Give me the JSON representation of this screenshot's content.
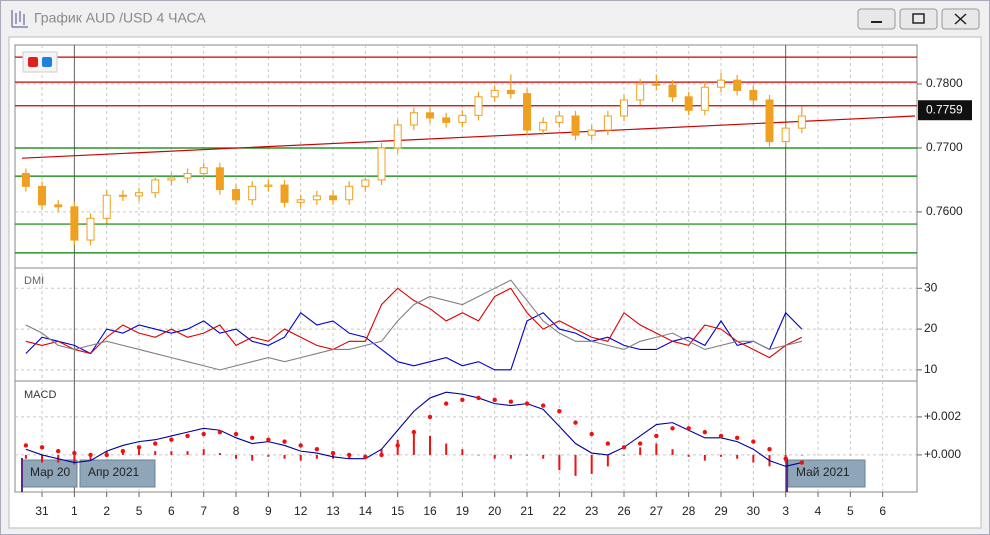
{
  "window": {
    "title": "График AUD /USD  4 ЧАСА"
  },
  "chart_data": [
    {
      "type": "candlestick",
      "color": "#f0a020",
      "x": [
        -0.5,
        0,
        0.5,
        1,
        1.5,
        2,
        2.5,
        3,
        3.5,
        4,
        4.5,
        5,
        5.5,
        6,
        6.5,
        7,
        7.5,
        8,
        8.5,
        9,
        9.5,
        10,
        10.5,
        11,
        11.5,
        12,
        12.5,
        13,
        13.5,
        14,
        14.5,
        15,
        15.5,
        16,
        16.5,
        17,
        17.5,
        18,
        18.5,
        19,
        19.5,
        20,
        20.5,
        21,
        21.5,
        22,
        22.5,
        23,
        23.5
      ],
      "open": [
        0.766,
        0.764,
        0.7611,
        0.7608,
        0.7556,
        0.759,
        0.7626,
        0.7625,
        0.763,
        0.765,
        0.7653,
        0.766,
        0.7669,
        0.7635,
        0.7619,
        0.764,
        0.7642,
        0.7615,
        0.7619,
        0.7625,
        0.7619,
        0.764,
        0.765,
        0.77,
        0.7736,
        0.7755,
        0.7747,
        0.774,
        0.7751,
        0.778,
        0.779,
        0.7785,
        0.7728,
        0.774,
        0.775,
        0.772,
        0.7728,
        0.775,
        0.7775,
        0.78,
        0.7798,
        0.778,
        0.7759,
        0.7795,
        0.7806,
        0.779,
        0.7775,
        0.771,
        0.7731
      ],
      "high": [
        0.7668,
        0.7648,
        0.7619,
        0.7616,
        0.7598,
        0.7634,
        0.7634,
        0.7638,
        0.7658,
        0.7661,
        0.7668,
        0.7677,
        0.7677,
        0.7643,
        0.7648,
        0.765,
        0.765,
        0.7627,
        0.7633,
        0.7633,
        0.7648,
        0.7658,
        0.7708,
        0.7744,
        0.7763,
        0.7763,
        0.7755,
        0.7759,
        0.7788,
        0.7798,
        0.7815,
        0.7793,
        0.7748,
        0.7758,
        0.7758,
        0.7736,
        0.7758,
        0.7783,
        0.7808,
        0.7815,
        0.7806,
        0.7788,
        0.7803,
        0.7818,
        0.7814,
        0.7798,
        0.7783,
        0.7739,
        0.7765
      ],
      "low": [
        0.7632,
        0.7603,
        0.76,
        0.7548,
        0.7548,
        0.7582,
        0.7617,
        0.7617,
        0.7622,
        0.7642,
        0.7645,
        0.7652,
        0.7627,
        0.7611,
        0.7611,
        0.7632,
        0.7607,
        0.7607,
        0.7611,
        0.7611,
        0.7611,
        0.7632,
        0.7642,
        0.7692,
        0.7728,
        0.7739,
        0.7732,
        0.7732,
        0.7743,
        0.7772,
        0.7777,
        0.772,
        0.772,
        0.7732,
        0.7712,
        0.7712,
        0.772,
        0.7742,
        0.7767,
        0.779,
        0.7772,
        0.7751,
        0.7751,
        0.7787,
        0.7782,
        0.7767,
        0.7702,
        0.7702,
        0.7723
      ],
      "close": [
        0.764,
        0.7611,
        0.7608,
        0.7556,
        0.759,
        0.7626,
        0.7625,
        0.763,
        0.765,
        0.7653,
        0.766,
        0.7669,
        0.7635,
        0.7619,
        0.764,
        0.7642,
        0.7615,
        0.7619,
        0.7625,
        0.7619,
        0.764,
        0.765,
        0.77,
        0.7736,
        0.7755,
        0.7747,
        0.774,
        0.7751,
        0.778,
        0.779,
        0.7785,
        0.7728,
        0.774,
        0.775,
        0.772,
        0.7728,
        0.775,
        0.7775,
        0.78,
        0.7798,
        0.778,
        0.7759,
        0.7795,
        0.7806,
        0.779,
        0.7775,
        0.771,
        0.7731,
        0.775
      ],
      "last_price": 0.7759,
      "levels": [
        {
          "value": 0.7842,
          "color": "#cc0000"
        },
        {
          "value": 0.7803,
          "color": "#cc0000"
        },
        {
          "value": 0.7766,
          "color": "#cc0000"
        },
        {
          "value": 0.77,
          "color": "#008000"
        },
        {
          "value": 0.7656,
          "color": "#008000"
        },
        {
          "value": 0.7581,
          "color": "#008000"
        },
        {
          "value": 0.7536,
          "color": "#008000"
        }
      ],
      "trendline": [
        0.7684,
        0.775
      ],
      "xlim": [
        -0.62,
        27.0
      ],
      "ylim": [
        0.7517,
        0.7861
      ],
      "yticks": [
        {
          "value": 0.76,
          "label": "0.7600"
        },
        {
          "value": 0.77,
          "label": "0.7700"
        },
        {
          "value": 0.78,
          "label": "0.7800"
        }
      ],
      "xticks": [
        {
          "value": 0,
          "label": "31"
        },
        {
          "value": 1,
          "label": "1"
        },
        {
          "value": 2,
          "label": "2"
        },
        {
          "value": 3,
          "label": "5"
        },
        {
          "value": 4,
          "label": "6"
        },
        {
          "value": 5,
          "label": "7"
        },
        {
          "value": 6,
          "label": "8"
        },
        {
          "value": 7,
          "label": "9"
        },
        {
          "value": 8,
          "label": "12"
        },
        {
          "value": 9,
          "label": "13"
        },
        {
          "value": 10,
          "label": "14"
        },
        {
          "value": 11,
          "label": "15"
        },
        {
          "value": 12,
          "label": "16"
        },
        {
          "value": 13,
          "label": "19"
        },
        {
          "value": 14,
          "label": "20"
        },
        {
          "value": 15,
          "label": "21"
        },
        {
          "value": 16,
          "label": "22"
        },
        {
          "value": 17,
          "label": "23"
        },
        {
          "value": 18,
          "label": "26"
        },
        {
          "value": 19,
          "label": "27"
        },
        {
          "value": 20,
          "label": "28"
        },
        {
          "value": 21,
          "label": "29"
        },
        {
          "value": 22,
          "label": "30"
        },
        {
          "value": 23,
          "label": "3"
        },
        {
          "value": 24,
          "label": "4"
        },
        {
          "value": 25,
          "label": "5"
        },
        {
          "value": 26,
          "label": "6"
        }
      ],
      "separators": [
        1,
        23
      ],
      "month_labels": [
        "Мар 20",
        "Апр 2021",
        "Май 2021"
      ],
      "grid": true
    },
    {
      "type": "line",
      "title": "DMI",
      "series": [
        {
          "color": "#0000cc",
          "values": [
            14,
            18,
            17,
            16,
            14,
            20,
            19,
            21,
            20,
            19,
            20,
            22,
            19,
            20,
            17,
            16,
            18,
            24,
            21,
            22,
            19,
            18,
            15,
            12,
            11,
            12,
            13,
            11,
            12,
            10,
            10,
            22,
            24,
            20,
            19,
            17,
            18,
            16,
            15,
            15,
            17,
            18,
            16,
            22,
            16,
            17,
            15,
            24,
            20
          ]
        },
        {
          "color": "#dd0000",
          "values": [
            17,
            16,
            17,
            15,
            14,
            18,
            21,
            19,
            18,
            20,
            18,
            19,
            21,
            16,
            18,
            17,
            20,
            18,
            16,
            15,
            17,
            17,
            26,
            30,
            27,
            25,
            22,
            24,
            22,
            28,
            30,
            24,
            20,
            22,
            20,
            18,
            17,
            24,
            21,
            19,
            17,
            16,
            21,
            20,
            17,
            15,
            13,
            16,
            18
          ]
        },
        {
          "color": "#808080",
          "values": [
            21,
            19,
            16,
            15,
            16,
            17,
            16,
            15,
            14,
            13,
            12,
            11,
            10,
            11,
            12,
            13,
            12,
            13,
            14,
            15,
            15,
            16,
            17,
            22,
            26,
            28,
            27,
            26,
            28,
            30,
            32,
            27,
            22,
            19,
            17,
            17,
            16,
            15,
            17,
            18,
            19,
            17,
            15,
            16,
            17,
            17,
            15,
            16,
            17
          ]
        }
      ],
      "ylim": [
        8,
        34
      ],
      "yticks": [
        10,
        20,
        30
      ]
    },
    {
      "type": "macd",
      "title": "MACD",
      "series": [
        {
          "color": "#000099",
          "style": "line",
          "values": [
            0.0003,
            0.0,
            -0.0002,
            -0.0004,
            -0.0003,
            0.0002,
            0.0005,
            0.0007,
            0.0008,
            0.001,
            0.0012,
            0.0014,
            0.0013,
            0.0009,
            0.0006,
            0.0007,
            0.0005,
            0.0002,
            0.0001,
            -0.0001,
            -0.0002,
            -0.0002,
            0.0003,
            0.0013,
            0.0023,
            0.003,
            0.0033,
            0.0032,
            0.003,
            0.0027,
            0.0026,
            0.0027,
            0.0024,
            0.0015,
            0.0006,
            0.0001,
            0.0,
            0.0004,
            0.001,
            0.0016,
            0.0017,
            0.0013,
            0.0009,
            0.0009,
            0.0007,
            0.0003,
            -0.0003,
            -0.0006,
            -0.0004
          ]
        },
        {
          "color": "#ee1111",
          "style": "dots",
          "values": [
            0.0005,
            0.0004,
            0.0002,
            0.0001,
            0.0,
            0.0,
            0.0002,
            0.0004,
            0.0006,
            0.0008,
            0.001,
            0.0011,
            0.0012,
            0.0011,
            0.0009,
            0.0008,
            0.0007,
            0.0005,
            0.0003,
            0.0001,
            0.0,
            -0.0001,
            0.0,
            0.0005,
            0.0012,
            0.002,
            0.0027,
            0.0029,
            0.003,
            0.0029,
            0.0028,
            0.0027,
            0.0026,
            0.0023,
            0.0017,
            0.0011,
            0.0006,
            0.0004,
            0.0006,
            0.001,
            0.0014,
            0.0014,
            0.0012,
            0.001,
            0.0009,
            0.0007,
            0.0003,
            -0.0002,
            -0.0004
          ]
        }
      ],
      "histogram": {
        "color": "#ee1111",
        "values": [
          -0.0002,
          -0.0004,
          -0.0004,
          -0.0005,
          -0.0003,
          0.0002,
          0.0003,
          0.0003,
          0.0002,
          0.0002,
          0.0002,
          0.0003,
          0.0001,
          -0.0002,
          -0.0003,
          -0.0001,
          -0.0002,
          -0.0003,
          -0.0002,
          -0.0002,
          -0.0002,
          -0.0001,
          0.0003,
          0.0008,
          0.0011,
          0.001,
          0.0006,
          0.0003,
          0.0,
          -0.0002,
          -0.0002,
          0.0,
          -0.0002,
          -0.0008,
          -0.0011,
          -0.001,
          -0.0006,
          0.0,
          0.0004,
          0.0006,
          0.0003,
          -0.0001,
          -0.0003,
          -0.0001,
          -0.0002,
          -0.0004,
          -0.0006,
          -0.0004,
          0.0
        ]
      },
      "ylim": [
        -0.00174,
        0.00368
      ],
      "yticks": [
        {
          "value": 0.0,
          "label": "+0.000"
        },
        {
          "value": 0.002,
          "label": "+0.002"
        }
      ]
    }
  ]
}
